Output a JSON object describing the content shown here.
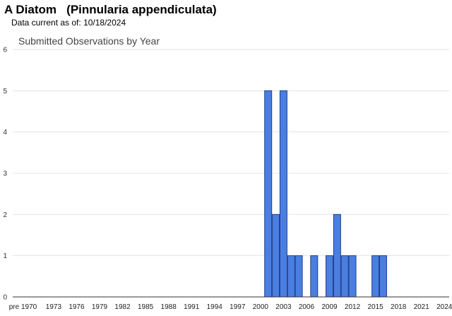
{
  "header": {
    "title": "A Diatom   (Pinnularia appendiculata)",
    "data_current_label": "Data current as of:",
    "data_current_date": "10/18/2024"
  },
  "chart_data": {
    "type": "bar",
    "title": "Submitted Observations by Year",
    "xlabel": "",
    "ylabel": "",
    "ylim": [
      0,
      6
    ],
    "yticks": [
      0,
      1,
      2,
      3,
      4,
      5,
      6
    ],
    "grid": true,
    "bar_color": "#4a7fe0",
    "bar_edge_color": "#1f3f8f",
    "x_tick_labels": [
      "pre 1970",
      "1973",
      "1976",
      "1979",
      "1982",
      "1985",
      "1988",
      "1991",
      "1994",
      "1997",
      "2000",
      "2003",
      "2006",
      "2009",
      "2012",
      "2015",
      "2018",
      "2021",
      "2024"
    ],
    "categories": [
      "pre 1970",
      "1970",
      "1971",
      "1972",
      "1973",
      "1974",
      "1975",
      "1976",
      "1977",
      "1978",
      "1979",
      "1980",
      "1981",
      "1982",
      "1983",
      "1984",
      "1985",
      "1986",
      "1987",
      "1988",
      "1989",
      "1990",
      "1991",
      "1992",
      "1993",
      "1994",
      "1995",
      "1996",
      "1997",
      "1998",
      "1999",
      "2000",
      "2001",
      "2002",
      "2003",
      "2004",
      "2005",
      "2006",
      "2007",
      "2008",
      "2009",
      "2010",
      "2011",
      "2012",
      "2013",
      "2014",
      "2015",
      "2016",
      "2017",
      "2018",
      "2019",
      "2020",
      "2021",
      "2022",
      "2023",
      "2024"
    ],
    "values": [
      0,
      0,
      0,
      0,
      0,
      0,
      0,
      0,
      0,
      0,
      0,
      0,
      0,
      0,
      0,
      0,
      0,
      0,
      0,
      0,
      0,
      0,
      0,
      0,
      0,
      0,
      0,
      0,
      0,
      0,
      0,
      0,
      5,
      2,
      5,
      1,
      1,
      0,
      1,
      0,
      1,
      2,
      1,
      1,
      0,
      0,
      1,
      1,
      0,
      0,
      0,
      0,
      0,
      0,
      0,
      0
    ]
  }
}
